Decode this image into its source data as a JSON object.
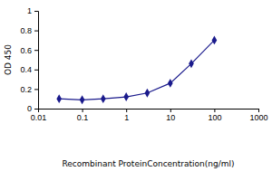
{
  "chart_data": {
    "type": "line",
    "x_label": "Recombinant ProteinConcentration(ng/ml)",
    "y_label": "OD 450",
    "x": [
      0.03,
      0.1,
      0.3,
      1,
      3,
      10,
      30,
      100
    ],
    "values": [
      0.1,
      0.09,
      0.1,
      0.12,
      0.16,
      0.26,
      0.46,
      0.7
    ],
    "color": "#1a1a8c",
    "marker": "diamond",
    "log": "x",
    "grid": false,
    "xlim": [
      0.01,
      1000
    ],
    "xticks": [
      0.01,
      0.1,
      1,
      10,
      100,
      1000
    ],
    "ylim": [
      0,
      1
    ],
    "yticks": [
      0,
      0.2,
      0.4,
      0.6,
      0.8,
      1
    ]
  }
}
